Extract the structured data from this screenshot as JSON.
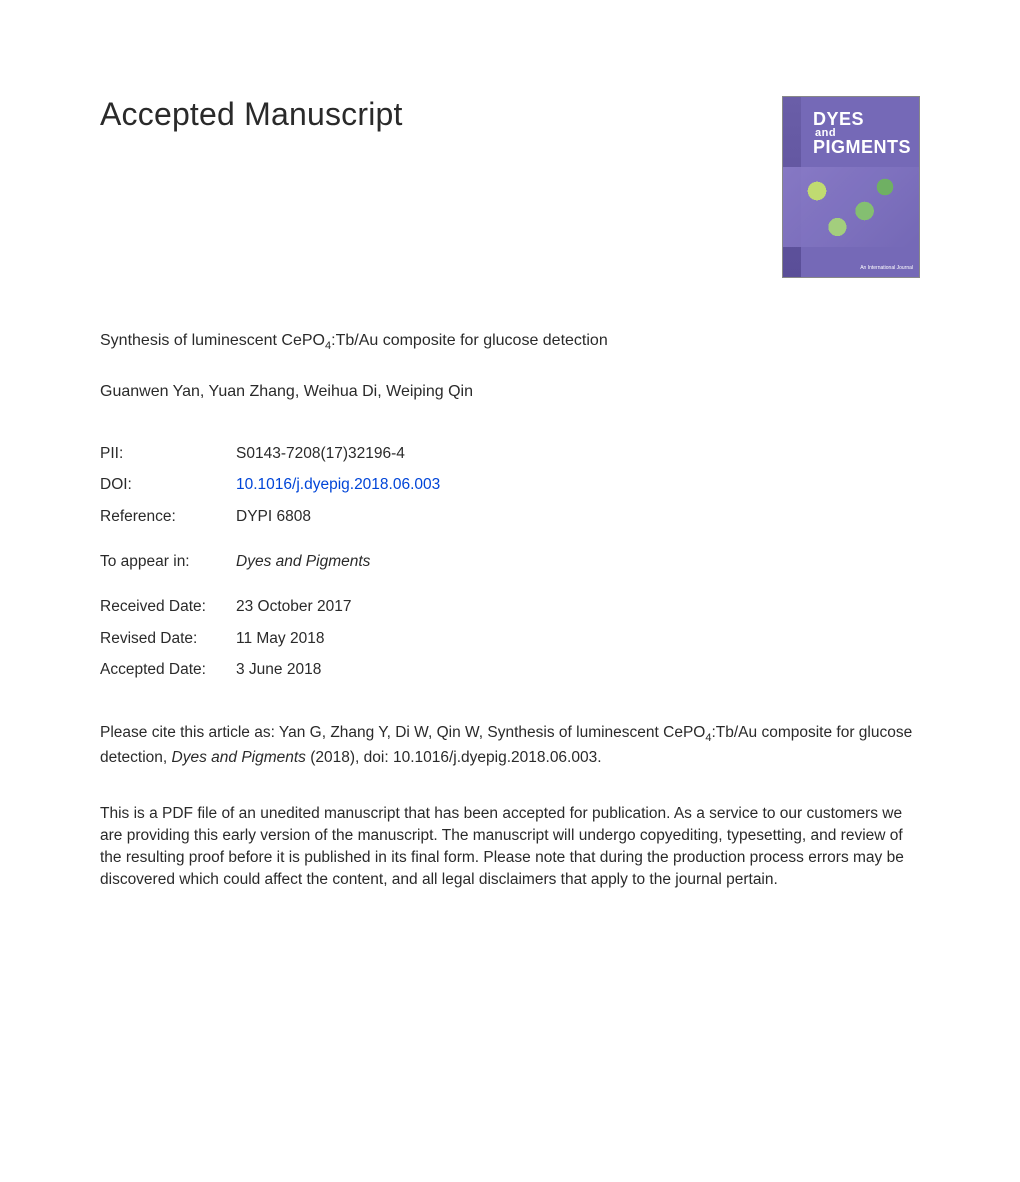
{
  "page": {
    "heading": "Accepted Manuscript",
    "background_color": "#ffffff",
    "text_color": "#292929",
    "heading_fontsize": 32
  },
  "journal_cover": {
    "title_line1": "DYES",
    "title_and": "and",
    "title_line2": "PIGMENTS",
    "background_color": "#7569b7",
    "title_color": "#ffffff",
    "publisher_text": "An International Journal"
  },
  "article": {
    "title_pre": "Synthesis of luminescent CePO",
    "title_sub": "4",
    "title_post": ":Tb/Au composite for glucose detection",
    "authors": "Guanwen Yan, Yuan Zhang, Weihua Di, Weiping Qin"
  },
  "meta": {
    "pii_label": "PII:",
    "pii_value": "S0143-7208(17)32196-4",
    "doi_label": "DOI:",
    "doi_value": "10.1016/j.dyepig.2018.06.003",
    "doi_link_color": "#0045d8",
    "reference_label": "Reference:",
    "reference_value": "DYPI 6808",
    "appear_label": "To appear in:",
    "appear_value": "Dyes and Pigments",
    "received_label": "Received Date:",
    "received_value": "23 October 2017",
    "revised_label": "Revised Date:",
    "revised_value": "11 May 2018",
    "accepted_label": "Accepted Date:",
    "accepted_value": "3 June 2018"
  },
  "citation": {
    "pre": "Please cite this article as: Yan G, Zhang Y, Di W, Qin W, Synthesis of luminescent CePO",
    "sub": "4",
    "mid": ":Tb/Au composite for glucose detection, ",
    "journal_ital": "Dyes and Pigments",
    "post": " (2018), doi: 10.1016/j.dyepig.2018.06.003."
  },
  "disclaimer": {
    "text": "This is a PDF file of an unedited manuscript that has been accepted for publication. As a service to our customers we are providing this early version of the manuscript. The manuscript will undergo copyediting, typesetting, and review of the resulting proof before it is published in its final form. Please note that during the production process errors may be discovered which could affect the content, and all legal disclaimers that apply to the journal pertain."
  },
  "typography": {
    "body_fontsize": 15.5,
    "line_height": 1.45,
    "font_family": "Arial, Helvetica, sans-serif"
  }
}
